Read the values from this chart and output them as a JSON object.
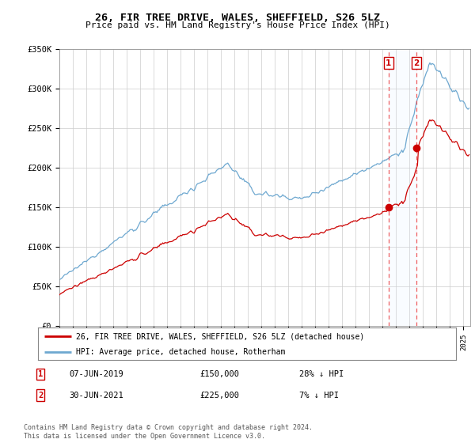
{
  "title": "26, FIR TREE DRIVE, WALES, SHEFFIELD, S26 5LZ",
  "subtitle": "Price paid vs. HM Land Registry's House Price Index (HPI)",
  "legend_label_red": "26, FIR TREE DRIVE, WALES, SHEFFIELD, S26 5LZ (detached house)",
  "legend_label_blue": "HPI: Average price, detached house, Rotherham",
  "transaction1_date": "07-JUN-2019",
  "transaction1_price": "£150,000",
  "transaction1_hpi": "28% ↓ HPI",
  "transaction2_date": "30-JUN-2021",
  "transaction2_price": "£225,000",
  "transaction2_hpi": "7% ↓ HPI",
  "footer": "Contains HM Land Registry data © Crown copyright and database right 2024.\nThis data is licensed under the Open Government Licence v3.0.",
  "ylim": [
    0,
    350000
  ],
  "yticks": [
    0,
    50000,
    100000,
    150000,
    200000,
    250000,
    300000,
    350000
  ],
  "ytick_labels": [
    "£0",
    "£50K",
    "£100K",
    "£150K",
    "£200K",
    "£250K",
    "£300K",
    "£350K"
  ],
  "red_color": "#cc0000",
  "blue_color": "#6ea8d0",
  "shading_color": "#ddeeff",
  "marker1_year": 2019.44,
  "marker2_year": 2021.5,
  "transaction1_value": 150000,
  "transaction2_value": 225000,
  "xlim_start": 1995,
  "xlim_end": 2025.5
}
